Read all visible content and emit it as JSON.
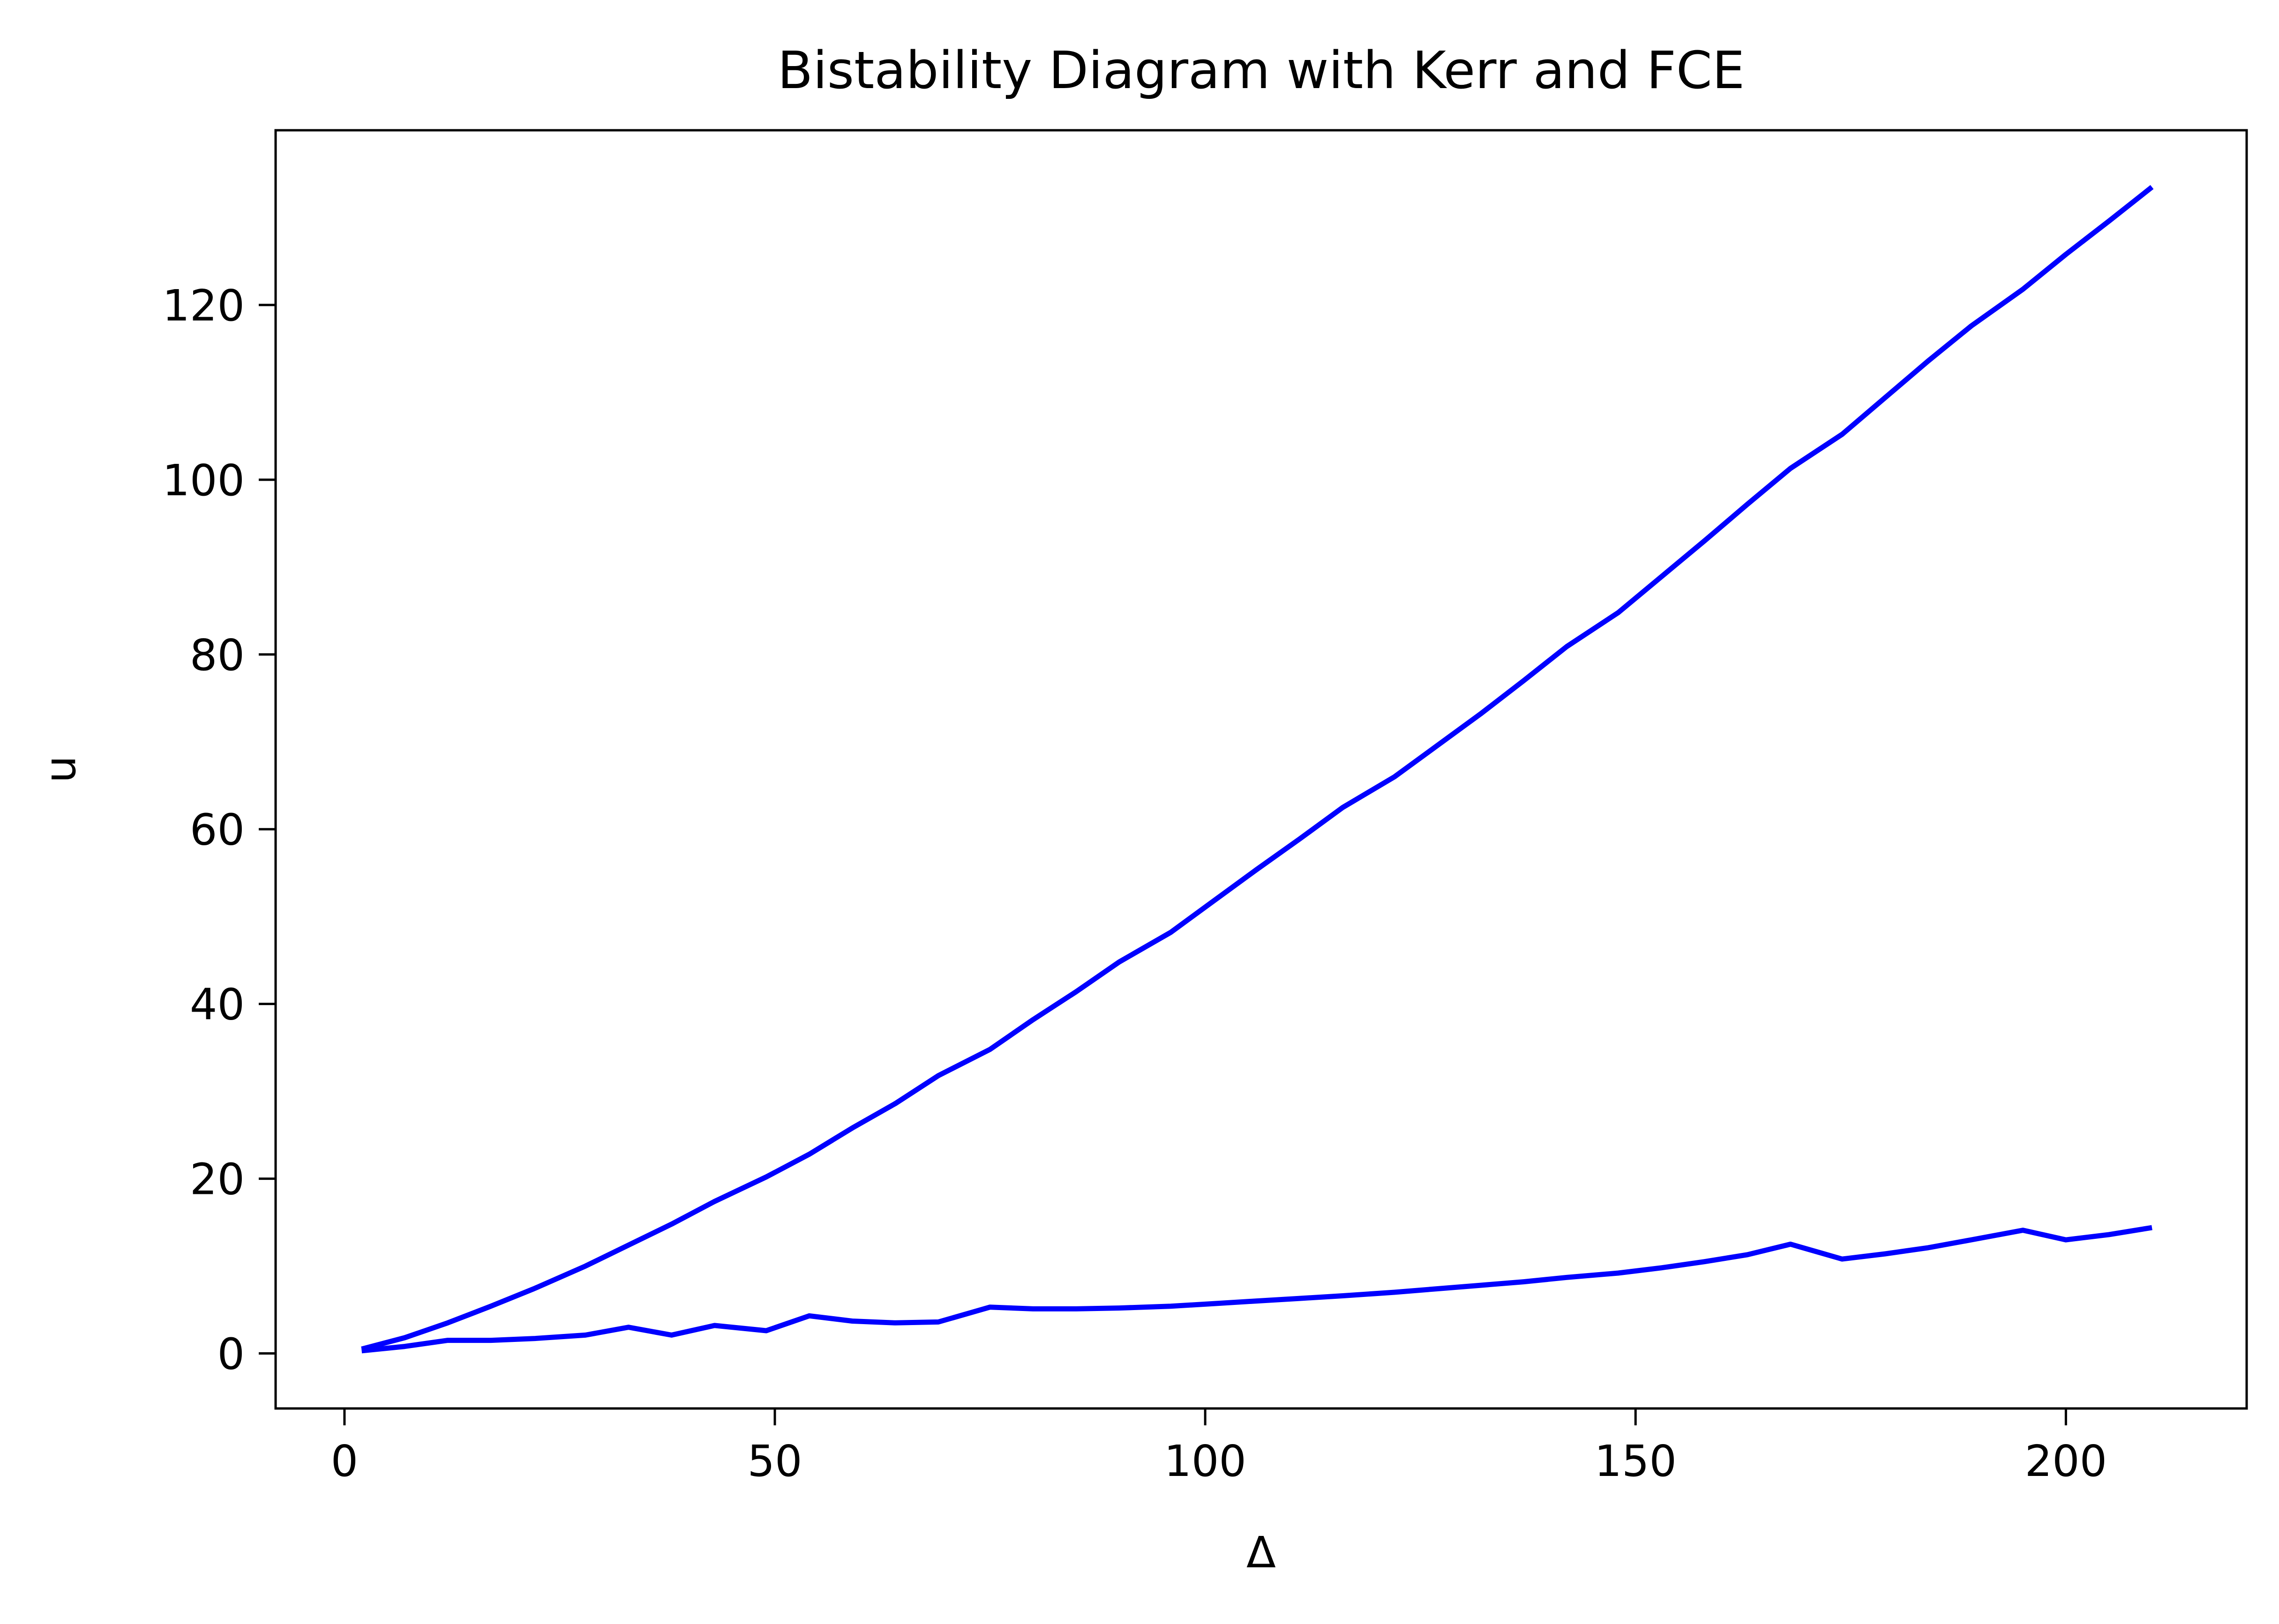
{
  "chart_data": {
    "type": "line",
    "title": "Bistability Diagram with Kerr and FCE",
    "xlabel": "Δ",
    "ylabel": "u",
    "xlim": [
      -8,
      221
    ],
    "ylim": [
      -6.3,
      140
    ],
    "xticks": [
      0,
      50,
      100,
      150,
      200
    ],
    "yticks": [
      0,
      20,
      40,
      60,
      80,
      100,
      120
    ],
    "grid": false,
    "legend": "none",
    "line_color": "#0000ff",
    "series": [
      {
        "x": [
          2,
          7,
          12,
          17,
          22,
          28,
          33,
          38,
          43,
          49,
          54,
          59,
          64,
          69,
          75,
          80,
          85,
          90,
          96,
          101,
          106,
          111,
          116,
          122,
          127,
          132,
          137,
          142,
          148,
          153,
          158,
          163,
          168,
          174,
          179,
          184,
          189,
          195,
          200,
          205,
          210
        ],
        "y": [
          0.5,
          1.8,
          3.5,
          5.4,
          7.4,
          10.0,
          12.4,
          14.8,
          17.4,
          20.2,
          22.8,
          25.8,
          28.6,
          31.8,
          34.8,
          38.2,
          41.4,
          44.8,
          48.2,
          51.8,
          55.4,
          58.9,
          62.5,
          66.0,
          69.6,
          73.2,
          77.0,
          80.9,
          84.8,
          88.9,
          93.0,
          97.2,
          101.3,
          105.2,
          109.4,
          113.6,
          117.6,
          121.8,
          125.8,
          129.6,
          133.5
        ]
      },
      {
        "x": [
          2,
          7,
          12,
          17,
          22,
          28,
          33,
          38,
          43,
          49,
          54,
          59,
          64,
          69,
          75,
          80,
          85,
          90,
          96,
          101,
          106,
          111,
          116,
          122,
          127,
          132,
          137,
          142,
          148,
          153,
          158,
          163,
          168,
          174,
          179,
          184,
          189,
          195,
          200,
          205,
          210
        ],
        "y": [
          0.3,
          0.8,
          1.5,
          1.5,
          1.7,
          2.1,
          3.0,
          2.1,
          3.2,
          2.6,
          4.3,
          3.7,
          3.5,
          3.6,
          5.3,
          5.1,
          5.1,
          5.2,
          5.4,
          5.7,
          6.0,
          6.3,
          6.6,
          7.0,
          7.4,
          7.8,
          8.2,
          8.7,
          9.2,
          9.8,
          10.5,
          11.3,
          12.5,
          10.8,
          11.4,
          12.1,
          13.0,
          14.1,
          13.0,
          13.6,
          14.4
        ]
      }
    ]
  }
}
